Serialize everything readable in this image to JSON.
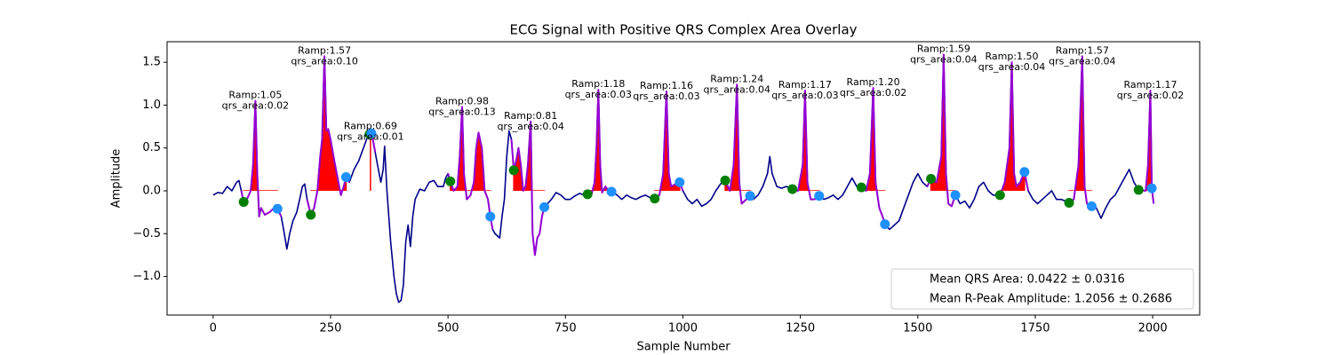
{
  "chart_data": {
    "type": "line",
    "title": "ECG Signal with Positive QRS Complex Area Overlay",
    "x_label": "Sample Number",
    "y_label": "Amplitude",
    "xlim": [
      -98,
      2100
    ],
    "ylim": [
      -1.45,
      1.74
    ],
    "xticks": [
      0,
      250,
      500,
      750,
      1000,
      1250,
      1500,
      1750,
      2000
    ],
    "yticks": [
      {
        "value": -1.0,
        "label": "−1.0"
      },
      {
        "value": -0.5,
        "label": "−0.5"
      },
      {
        "value": 0,
        "label": "0.0"
      },
      0.5,
      {
        "value": 1.0,
        "label": "1.0"
      },
      1.5
    ],
    "colors": {
      "signal": "#00008b",
      "qrs": "#9400d3",
      "area": "#ff0000",
      "onset": "#008000",
      "offset": "#1e90ff"
    },
    "x": [
      0,
      10,
      20,
      30,
      40,
      50,
      55,
      60,
      65,
      72,
      80,
      85,
      90,
      94,
      98,
      102,
      110,
      120,
      130,
      137,
      145,
      150,
      157,
      163,
      170,
      178,
      185,
      190,
      195,
      200,
      208,
      215,
      222,
      228,
      232,
      237,
      241,
      245,
      250,
      258,
      265,
      272,
      278,
      283,
      290,
      300,
      310,
      320,
      330,
      335,
      340,
      345,
      350,
      357,
      362,
      365,
      370,
      378,
      385,
      390,
      395,
      400,
      405,
      410,
      415,
      420,
      425,
      430,
      440,
      450,
      460,
      470,
      478,
      490,
      495,
      500,
      505,
      512,
      520,
      525,
      530,
      534,
      540,
      548,
      555,
      560,
      565,
      572,
      578,
      585,
      590,
      595,
      600,
      610,
      615,
      620,
      625,
      630,
      635,
      640,
      645,
      650,
      655,
      660,
      665,
      670,
      676,
      680,
      685,
      690,
      695,
      700,
      705,
      712,
      720,
      730,
      740,
      750,
      760,
      770,
      780,
      790,
      797,
      805,
      812,
      816,
      820,
      824,
      828,
      835,
      842,
      848,
      860,
      870,
      880,
      890,
      900,
      910,
      920,
      930,
      940,
      950,
      958,
      965,
      970,
      975,
      985,
      993,
      1000,
      1010,
      1020,
      1030,
      1040,
      1050,
      1060,
      1070,
      1080,
      1090,
      1100,
      1108,
      1115,
      1120,
      1125,
      1135,
      1143,
      1150,
      1160,
      1170,
      1180,
      1185,
      1190,
      1200,
      1210,
      1220,
      1233,
      1245,
      1255,
      1260,
      1265,
      1272,
      1280,
      1290,
      1300,
      1310,
      1320,
      1330,
      1340,
      1350,
      1360,
      1370,
      1380,
      1390,
      1398,
      1405,
      1410,
      1418,
      1425,
      1430,
      1440,
      1450,
      1460,
      1470,
      1480,
      1490,
      1500,
      1510,
      1520,
      1528,
      1540,
      1550,
      1555,
      1560,
      1565,
      1572,
      1580,
      1590,
      1600,
      1610,
      1620,
      1630,
      1640,
      1650,
      1660,
      1675,
      1685,
      1695,
      1700,
      1705,
      1710,
      1718,
      1727,
      1735,
      1745,
      1755,
      1765,
      1775,
      1785,
      1795,
      1805,
      1815,
      1822,
      1832,
      1842,
      1850,
      1855,
      1860,
      1870,
      1880,
      1890,
      1900,
      1910,
      1920,
      1930,
      1940,
      1950,
      1960,
      1970,
      1985,
      1990,
      1995,
      1998,
      2002
    ],
    "values": [
      -0.05,
      -0.02,
      -0.03,
      0.05,
      0.0,
      0.1,
      0.12,
      0.0,
      -0.13,
      -0.1,
      0.0,
      0.3,
      1.05,
      0.2,
      -0.3,
      -0.2,
      -0.28,
      -0.25,
      -0.2,
      -0.21,
      -0.3,
      -0.45,
      -0.68,
      -0.5,
      -0.35,
      -0.25,
      -0.08,
      0.05,
      0.08,
      -0.1,
      -0.28,
      -0.2,
      0.0,
      0.4,
      0.6,
      1.57,
      0.7,
      0.72,
      0.6,
      0.35,
      0.15,
      -0.05,
      0.05,
      0.16,
      0.1,
      0.25,
      0.35,
      0.5,
      0.65,
      0.69,
      0.6,
      0.45,
      0.3,
      0.1,
      0.25,
      0.52,
      0.0,
      -0.6,
      -1.0,
      -1.2,
      -1.3,
      -1.28,
      -1.1,
      -0.6,
      -0.4,
      -0.65,
      -0.3,
      -0.1,
      0.02,
      0.0,
      0.1,
      0.12,
      0.05,
      0.05,
      0.15,
      0.2,
      0.11,
      0.0,
      0.05,
      0.4,
      0.98,
      0.2,
      -0.1,
      -0.05,
      0.1,
      0.5,
      0.68,
      0.5,
      0.0,
      -0.1,
      -0.3,
      -0.45,
      -0.5,
      -0.55,
      -0.3,
      -0.1,
      0.4,
      0.7,
      0.6,
      0.24,
      0.35,
      0.5,
      0.3,
      0.0,
      0.05,
      0.3,
      0.81,
      -0.5,
      -0.75,
      -0.55,
      -0.5,
      -0.3,
      -0.19,
      -0.15,
      -0.1,
      -0.02,
      -0.05,
      -0.1,
      -0.1,
      -0.06,
      -0.03,
      -0.05,
      -0.04,
      -0.05,
      0.1,
      0.5,
      1.18,
      0.3,
      -0.02,
      0.05,
      0.0,
      -0.01,
      -0.05,
      -0.1,
      -0.05,
      -0.08,
      -0.1,
      -0.07,
      -0.05,
      -0.08,
      -0.09,
      -0.05,
      0.2,
      1.16,
      0.2,
      0.05,
      0.08,
      0.1,
      0.0,
      -0.1,
      -0.15,
      -0.1,
      -0.18,
      -0.15,
      -0.1,
      0.0,
      0.08,
      0.12,
      0.0,
      0.3,
      1.24,
      0.1,
      -0.15,
      -0.1,
      -0.06,
      -0.1,
      -0.05,
      0.05,
      0.2,
      0.4,
      0.2,
      0.05,
      0.03,
      0.05,
      0.02,
      0.0,
      0.3,
      1.17,
      0.1,
      -0.1,
      -0.1,
      -0.06,
      -0.1,
      -0.08,
      -0.05,
      -0.1,
      -0.05,
      0.05,
      0.15,
      0.05,
      0.04,
      0.0,
      0.2,
      1.2,
      0.1,
      -0.2,
      -0.3,
      -0.39,
      -0.45,
      -0.4,
      -0.35,
      -0.2,
      -0.05,
      0.1,
      0.2,
      0.1,
      0.05,
      0.14,
      0.1,
      0.4,
      1.59,
      0.2,
      -0.15,
      -0.18,
      -0.05,
      -0.15,
      -0.12,
      -0.2,
      -0.1,
      0.05,
      0.1,
      0.0,
      -0.05,
      -0.05,
      0.1,
      0.5,
      1.5,
      0.2,
      0.05,
      0.1,
      0.22,
      0.0,
      -0.1,
      -0.15,
      -0.1,
      -0.05,
      0.0,
      -0.1,
      -0.1,
      -0.12,
      -0.14,
      -0.1,
      0.3,
      1.57,
      0.05,
      -0.15,
      -0.18,
      -0.2,
      -0.32,
      -0.2,
      -0.1,
      -0.05,
      0.05,
      0.15,
      0.25,
      0.1,
      0.01,
      0.0,
      0.3,
      1.17,
      0.03,
      -0.15
    ],
    "beats": [
      {
        "onset_x": 65,
        "onset_y": -0.13,
        "offset_x": 137,
        "offset_y": -0.21,
        "peak_x": 90,
        "r_amp": 1.05,
        "qrs_area": 0.02,
        "label": [
          "Ramp:1.05",
          "qrs_area:0.02"
        ]
      },
      {
        "onset_x": 208,
        "onset_y": -0.28,
        "offset_x": 283,
        "offset_y": 0.16,
        "peak_x": 237,
        "r_amp": 1.57,
        "qrs_area": 0.1,
        "label": [
          "Ramp:1.57",
          "qrs_area:0.10"
        ]
      },
      {
        "onset_x": 333,
        "onset_y": 0.66,
        "offset_x": 337,
        "offset_y": 0.67,
        "peak_x": 335,
        "r_amp": 0.69,
        "qrs_area": 0.01,
        "label": [
          "Ramp:0.69",
          "qrs_area:0.01"
        ]
      },
      {
        "onset_x": 505,
        "onset_y": 0.11,
        "offset_x": 590,
        "offset_y": -0.3,
        "peak_x": 530,
        "r_amp": 0.98,
        "qrs_area": 0.13,
        "label": [
          "Ramp:0.98",
          "qrs_area:0.13"
        ]
      },
      {
        "onset_x": 640,
        "onset_y": 0.24,
        "offset_x": 705,
        "offset_y": -0.19,
        "peak_x": 676,
        "r_amp": 0.81,
        "qrs_area": 0.04,
        "label": [
          "Ramp:0.81",
          "qrs_area:0.04"
        ]
      },
      {
        "onset_x": 797,
        "onset_y": -0.04,
        "offset_x": 848,
        "offset_y": -0.01,
        "peak_x": 820,
        "r_amp": 1.18,
        "qrs_area": 0.03,
        "label": [
          "Ramp:1.18",
          "qrs_area:0.03"
        ]
      },
      {
        "onset_x": 940,
        "onset_y": -0.09,
        "offset_x": 993,
        "offset_y": 0.1,
        "peak_x": 965,
        "r_amp": 1.16,
        "qrs_area": 0.03,
        "label": [
          "Ramp:1.16",
          "qrs_area:0.03"
        ]
      },
      {
        "onset_x": 1090,
        "onset_y": 0.12,
        "offset_x": 1143,
        "offset_y": -0.06,
        "peak_x": 1115,
        "r_amp": 1.24,
        "qrs_area": 0.04,
        "label": [
          "Ramp:1.24",
          "qrs_area:0.04"
        ]
      },
      {
        "onset_x": 1233,
        "onset_y": 0.02,
        "offset_x": 1290,
        "offset_y": -0.06,
        "peak_x": 1260,
        "r_amp": 1.17,
        "qrs_area": 0.03,
        "label": [
          "Ramp:1.17",
          "qrs_area:0.03"
        ]
      },
      {
        "onset_x": 1380,
        "onset_y": 0.04,
        "offset_x": 1430,
        "offset_y": -0.39,
        "peak_x": 1405,
        "r_amp": 1.2,
        "qrs_area": 0.02,
        "label": [
          "Ramp:1.20",
          "qrs_area:0.02"
        ]
      },
      {
        "onset_x": 1528,
        "onset_y": 0.14,
        "offset_x": 1580,
        "offset_y": -0.05,
        "peak_x": 1555,
        "r_amp": 1.59,
        "qrs_area": 0.04,
        "label": [
          "Ramp:1.59",
          "qrs_area:0.04"
        ]
      },
      {
        "onset_x": 1675,
        "onset_y": -0.05,
        "offset_x": 1727,
        "offset_y": 0.22,
        "peak_x": 1700,
        "r_amp": 1.5,
        "qrs_area": 0.04,
        "label": [
          "Ramp:1.50",
          "qrs_area:0.04"
        ]
      },
      {
        "onset_x": 1822,
        "onset_y": -0.14,
        "offset_x": 1870,
        "offset_y": -0.18,
        "peak_x": 1850,
        "r_amp": 1.57,
        "qrs_area": 0.04,
        "label": [
          "Ramp:1.57",
          "qrs_area:0.04"
        ]
      },
      {
        "onset_x": 1970,
        "onset_y": 0.01,
        "offset_x": 1998,
        "offset_y": 0.03,
        "peak_x": 1995,
        "r_amp": 1.17,
        "qrs_area": 0.02,
        "label": [
          "Ramp:1.17",
          "qrs_area:0.02"
        ]
      }
    ],
    "legend": [
      "Mean QRS Area: 0.0422 ± 0.0316",
      "Mean R-Peak Amplitude: 1.2056 ± 0.2686"
    ]
  }
}
